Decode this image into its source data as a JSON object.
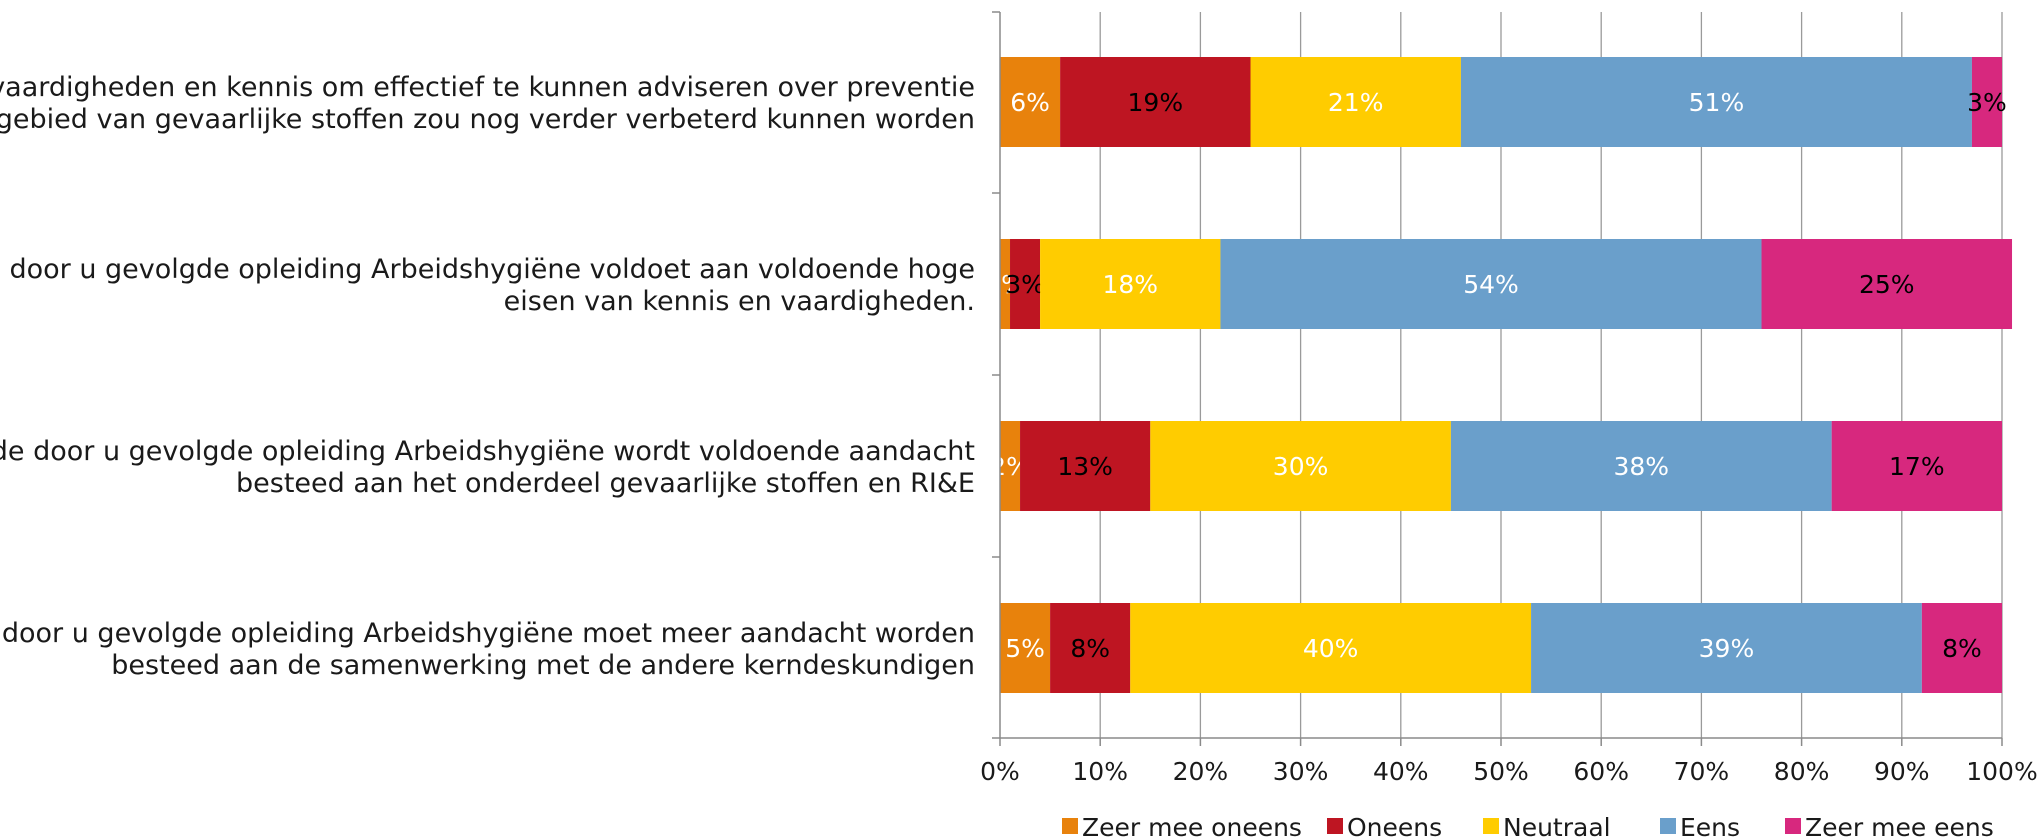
{
  "chart_data": {
    "type": "bar",
    "orientation": "horizontal",
    "stacked": "percent",
    "categories": [
      [
        "Mijn vaardigheden en kennis om effectief te kunnen adviseren over preventie",
        "op gebied van gevaarlijke stoffen zou nog verder verbeterd kunnen worden"
      ],
      [
        "De door u gevolgde opleiding Arbeidshygiëne voldoet aan voldoende hoge",
        "eisen van kennis en vaardigheden."
      ],
      [
        "In de door u gevolgde opleiding Arbeidshygiëne wordt voldoende aandacht",
        "besteed aan het onderdeel gevaarlijke stoffen en RI&E"
      ],
      [
        "In de door u gevolgde opleiding Arbeidshygiëne moet meer aandacht worden",
        "besteed aan de samenwerking met de andere kerndeskundigen"
      ]
    ],
    "series": [
      {
        "name": "Zeer mee oneens",
        "color": "#E8820C",
        "label_color": "#ffffff",
        "values": [
          6,
          1,
          2,
          5
        ],
        "labels": [
          "6%",
          "1%",
          "2%",
          "5%"
        ]
      },
      {
        "name": "Oneens",
        "color": "#BE1522",
        "label_color": "#000000",
        "values": [
          19,
          3,
          13,
          8
        ],
        "labels": [
          "19%",
          "3%",
          "13%",
          "8%"
        ]
      },
      {
        "name": "Neutraal",
        "color": "#FFCC00",
        "label_color": "#ffffff",
        "values": [
          21,
          18,
          30,
          40
        ],
        "labels": [
          "21%",
          "18%",
          "30%",
          "40%"
        ]
      },
      {
        "name": "Eens",
        "color": "#6A9FCB",
        "label_color": "#ffffff",
        "values": [
          51,
          54,
          38,
          39
        ],
        "labels": [
          "51%",
          "54%",
          "38%",
          "39%"
        ]
      },
      {
        "name": "Zeer mee eens",
        "color": "#D7287E",
        "label_color": "#000000",
        "values": [
          3,
          25,
          17,
          8
        ],
        "labels": [
          "3%",
          "25%",
          "17%",
          "8%"
        ]
      }
    ],
    "xlim": [
      0,
      100
    ],
    "x_ticks": [
      "0%",
      "10%",
      "20%",
      "30%",
      "40%",
      "50%",
      "60%",
      "70%",
      "80%",
      "90%",
      "100%"
    ],
    "grid": true,
    "legend_position": "bottom"
  }
}
